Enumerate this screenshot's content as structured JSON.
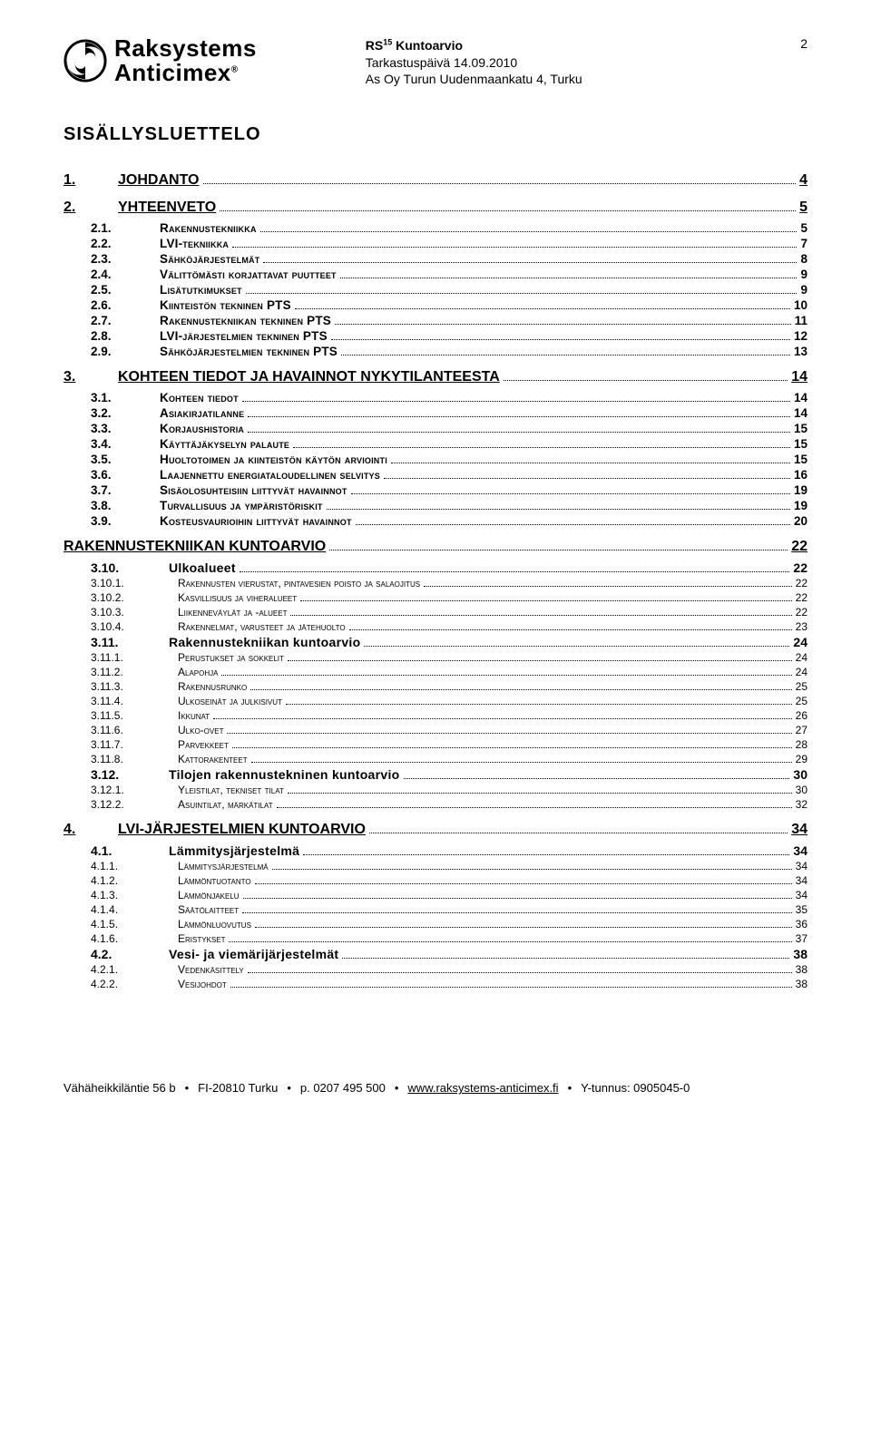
{
  "header": {
    "brand_top": "Raksystems",
    "brand_bottom": "Anticimex",
    "brand_reg": "®",
    "doc_title_prefix": "RS",
    "doc_title_sup": "15",
    "doc_title_suffix": " Kuntoarvio",
    "doc_line2": "Tarkastuspäivä 14.09.2010",
    "doc_line3": "As Oy Turun Uudenmaankatu 4, Turku",
    "page_number": "2"
  },
  "toc_title": "SISÄLLYSLUETTELO",
  "toc": [
    {
      "level": 1,
      "num": "1.",
      "label": "JOHDANTO",
      "page": "4"
    },
    {
      "level": 1,
      "num": "2.",
      "label": "YHTEENVETO",
      "page": "5"
    },
    {
      "level": 2,
      "num": "2.1.",
      "label": "Rakennustekniikka",
      "page": "5"
    },
    {
      "level": 2,
      "num": "2.2.",
      "label": "LVI-tekniikka",
      "page": "7"
    },
    {
      "level": 2,
      "num": "2.3.",
      "label": "Sähköjärjestelmät",
      "page": "8"
    },
    {
      "level": 2,
      "num": "2.4.",
      "label": "Välittömästi korjattavat puutteet",
      "page": "9"
    },
    {
      "level": 2,
      "num": "2.5.",
      "label": "Lisätutkimukset",
      "page": "9"
    },
    {
      "level": 2,
      "num": "2.6.",
      "label": "Kiinteistön tekninen PTS",
      "page": "10"
    },
    {
      "level": 2,
      "num": "2.7.",
      "label": "Rakennustekniikan tekninen PTS",
      "page": "11"
    },
    {
      "level": 2,
      "num": "2.8.",
      "label": "LVI-järjestelmien tekninen PTS",
      "page": "12"
    },
    {
      "level": 2,
      "num": "2.9.",
      "label": "Sähköjärjestelmien tekninen PTS",
      "page": "13"
    },
    {
      "level": 1,
      "num": "3.",
      "label": "KOHTEEN TIEDOT JA HAVAINNOT NYKYTILANTEESTA",
      "page": "14"
    },
    {
      "level": 2,
      "num": "3.1.",
      "label": "Kohteen tiedot",
      "page": "14"
    },
    {
      "level": 2,
      "num": "3.2.",
      "label": "Asiakirjatilanne",
      "page": "14"
    },
    {
      "level": 2,
      "num": "3.3.",
      "label": "Korjaushistoria",
      "page": "15"
    },
    {
      "level": 2,
      "num": "3.4.",
      "label": "Käyttäjäkyselyn palaute",
      "page": "15"
    },
    {
      "level": 2,
      "num": "3.5.",
      "label": "Huoltotoimen ja kiinteistön käytön arviointi",
      "page": "15"
    },
    {
      "level": 2,
      "num": "3.6.",
      "label": "Laajennettu energiataloudellinen selvitys",
      "page": "16"
    },
    {
      "level": 2,
      "num": "3.7.",
      "label": "Sisäolosuhteisiin liittyvät havainnot",
      "page": "19"
    },
    {
      "level": 2,
      "num": "3.8.",
      "label": "Turvallisuus ja ympäristöriskit",
      "page": "19"
    },
    {
      "level": 2,
      "num": "3.9.",
      "label": "Kosteusvaurioihin liittyvät havainnot",
      "page": "20"
    },
    {
      "level": 1,
      "num": "",
      "label": "RAKENNUSTEKNIIKAN KUNTOARVIO",
      "page": "22",
      "nonum": true
    },
    {
      "level": "2h",
      "num": "3.10.",
      "label": "Ulkoalueet",
      "page": "22"
    },
    {
      "level": 3,
      "num": "3.10.1.",
      "label": "Rakennusten vierustat, pintavesien poisto ja salaojitus",
      "page": "22"
    },
    {
      "level": 3,
      "num": "3.10.2.",
      "label": "Kasvillisuus ja viheralueet",
      "page": "22"
    },
    {
      "level": 3,
      "num": "3.10.3.",
      "label": "Liikenneväylät ja -alueet",
      "page": "22"
    },
    {
      "level": 3,
      "num": "3.10.4.",
      "label": "Rakennelmat, varusteet ja jätehuolto",
      "page": "23"
    },
    {
      "level": "2h",
      "num": "3.11.",
      "label": "Rakennustekniikan kuntoarvio",
      "page": "24"
    },
    {
      "level": 3,
      "num": "3.11.1.",
      "label": "Perustukset ja sokkelit",
      "page": "24"
    },
    {
      "level": 3,
      "num": "3.11.2.",
      "label": "Alapohja",
      "page": "24"
    },
    {
      "level": 3,
      "num": "3.11.3.",
      "label": "Rakennusrunko",
      "page": "25"
    },
    {
      "level": 3,
      "num": "3.11.4.",
      "label": "Ulkoseinät ja julkisivut",
      "page": "25"
    },
    {
      "level": 3,
      "num": "3.11.5.",
      "label": "Ikkunat",
      "page": "26"
    },
    {
      "level": 3,
      "num": "3.11.6.",
      "label": "Ulko-ovet",
      "page": "27"
    },
    {
      "level": 3,
      "num": "3.11.7.",
      "label": "Parvekkeet",
      "page": "28"
    },
    {
      "level": 3,
      "num": "3.11.8.",
      "label": "Kattorakenteet",
      "page": "29"
    },
    {
      "level": "2h",
      "num": "3.12.",
      "label": "Tilojen rakennustekninen kuntoarvio",
      "page": "30"
    },
    {
      "level": 3,
      "num": "3.12.1.",
      "label": "Yleistilat, tekniset tilat",
      "page": "30"
    },
    {
      "level": 3,
      "num": "3.12.2.",
      "label": "Asuintilat, märkätilat",
      "page": "32"
    },
    {
      "level": 1,
      "num": "4.",
      "label": "LVI-JÄRJESTELMIEN KUNTOARVIO",
      "page": "34"
    },
    {
      "level": "2h",
      "num": "4.1.",
      "label": "Lämmitysjärjestelmä",
      "page": "34"
    },
    {
      "level": 3,
      "num": "4.1.1.",
      "label": "Lämmitysjärjestelmä",
      "page": "34"
    },
    {
      "level": 3,
      "num": "4.1.2.",
      "label": "Lämmöntuotanto",
      "page": "34"
    },
    {
      "level": 3,
      "num": "4.1.3.",
      "label": "Lämmönjakelu",
      "page": "34"
    },
    {
      "level": 3,
      "num": "4.1.4.",
      "label": "Säätölaitteet",
      "page": "35"
    },
    {
      "level": 3,
      "num": "4.1.5.",
      "label": "Lämmönluovutus",
      "page": "36"
    },
    {
      "level": 3,
      "num": "4.1.6.",
      "label": "Eristykset",
      "page": "37"
    },
    {
      "level": "2h",
      "num": "4.2.",
      "label": "Vesi- ja viemärijärjestelmät",
      "page": "38"
    },
    {
      "level": 3,
      "num": "4.2.1.",
      "label": "Vedenkäsittely",
      "page": "38"
    },
    {
      "level": 3,
      "num": "4.2.2.",
      "label": "Vesijohdot",
      "page": "38"
    }
  ],
  "footer": {
    "addr": "Vähäheikkiläntie 56 b",
    "postal": "FI-20810 Turku",
    "phone": "p. 0207 495 500",
    "url": "www.raksystems-anticimex.fi",
    "yt": "Y-tunnus: 0905045-0"
  }
}
